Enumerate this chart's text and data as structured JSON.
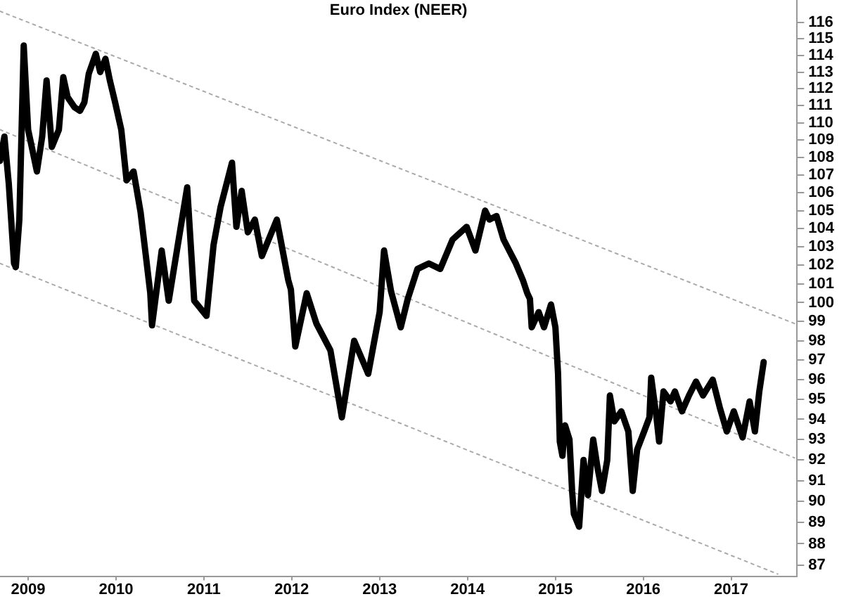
{
  "chart_data": {
    "type": "line",
    "title": "Euro Index (NEER)",
    "log": "y",
    "grid": false,
    "legend": false,
    "marker": "none",
    "xlim": [
      2008.68,
      2017.75
    ],
    "ylim": [
      86.5,
      117.4
    ],
    "xticks": [
      {
        "value": 2009,
        "label": "2009"
      },
      {
        "value": 2010,
        "label": "2010"
      },
      {
        "value": 2011,
        "label": "2011"
      },
      {
        "value": 2012,
        "label": "2012"
      },
      {
        "value": 2013,
        "label": "2013"
      },
      {
        "value": 2014,
        "label": "2014"
      },
      {
        "value": 2015,
        "label": "2015"
      },
      {
        "value": 2016,
        "label": "2016"
      },
      {
        "value": 2017,
        "label": "2017"
      }
    ],
    "yticks": [
      87,
      88,
      89,
      90,
      91,
      92,
      93,
      94,
      95,
      96,
      97,
      98,
      99,
      100,
      101,
      102,
      103,
      104,
      105,
      106,
      107,
      108,
      109,
      110,
      111,
      112,
      113,
      114,
      115,
      116
    ],
    "series": [
      {
        "color": "#000000",
        "line_style": "solid",
        "x": [
          2008.68,
          2008.73,
          2008.78,
          2008.84,
          2008.86,
          2008.9,
          2008.95,
          2009.0,
          2009.05,
          2009.1,
          2009.16,
          2009.21,
          2009.27,
          2009.35,
          2009.4,
          2009.45,
          2009.53,
          2009.59,
          2009.64,
          2009.69,
          2009.77,
          2009.82,
          2009.88,
          2009.93,
          2009.99,
          2010.06,
          2010.12,
          2010.2,
          2010.28,
          2010.34,
          2010.39,
          2010.41,
          2010.52,
          2010.6,
          2010.81,
          2010.89,
          2011.03,
          2011.11,
          2011.19,
          2011.32,
          2011.37,
          2011.43,
          2011.5,
          2011.58,
          2011.66,
          2011.83,
          2011.96,
          2011.99,
          2012.04,
          2012.17,
          2012.28,
          2012.44,
          2012.57,
          2012.71,
          2012.87,
          2013.0,
          2013.05,
          2013.13,
          2013.24,
          2013.32,
          2013.43,
          2013.56,
          2013.69,
          2013.83,
          2013.99,
          2014.09,
          2014.2,
          2014.25,
          2014.33,
          2014.41,
          2014.55,
          2014.63,
          2014.68,
          2014.71,
          2014.73,
          2014.81,
          2014.87,
          2014.95,
          2015.0,
          2015.03,
          2015.05,
          2015.08,
          2015.11,
          2015.16,
          2015.19,
          2015.21,
          2015.27,
          2015.32,
          2015.37,
          2015.43,
          2015.48,
          2015.53,
          2015.59,
          2015.62,
          2015.67,
          2015.75,
          2015.83,
          2015.88,
          2015.93,
          2016.01,
          2016.07,
          2016.09,
          2016.15,
          2016.18,
          2016.23,
          2016.31,
          2016.36,
          2016.44,
          2016.52,
          2016.6,
          2016.68,
          2016.79,
          2016.87,
          2016.95,
          2017.03,
          2017.13,
          2017.21,
          2017.27,
          2017.32,
          2017.37
        ],
        "values": [
          107.8,
          109.2,
          106.5,
          102.1,
          101.9,
          104.5,
          114.6,
          109.6,
          108.4,
          107.2,
          109.2,
          112.5,
          108.6,
          109.6,
          112.7,
          111.5,
          110.9,
          110.7,
          111.2,
          112.9,
          114.1,
          113,
          113.8,
          112.5,
          111.2,
          109.6,
          106.7,
          107.2,
          104.9,
          102.5,
          100.5,
          98.8,
          102.8,
          100.1,
          106.3,
          100.1,
          99.3,
          103.1,
          105.2,
          107.7,
          104.1,
          106.1,
          103.8,
          104.5,
          102.5,
          104.5,
          101.2,
          100.7,
          97.7,
          100.5,
          98.9,
          97.5,
          94.1,
          98.0,
          96.3,
          99.5,
          102.8,
          100.6,
          98.7,
          100.2,
          101.8,
          102.1,
          101.8,
          103.4,
          104.1,
          102.8,
          105,
          104.5,
          104.7,
          103.4,
          102.1,
          101.2,
          100.5,
          100.2,
          98.7,
          99.5,
          98.7,
          99.9,
          98.7,
          96.3,
          92.9,
          92.2,
          93.7,
          93,
          90.5,
          89.4,
          88.8,
          92,
          90.3,
          93,
          91.6,
          90.5,
          92,
          95.2,
          93.9,
          94.4,
          93.4,
          90.5,
          92.5,
          93.4,
          94.1,
          96.1,
          94.1,
          92.9,
          95.4,
          94.9,
          95.4,
          94.4,
          95.2,
          95.9,
          95.2,
          96,
          94.6,
          93.4,
          94.4,
          93.1,
          94.9,
          93.4,
          95.4,
          96.9
        ]
      },
      {
        "type": "line",
        "color": "#aaaaaa",
        "line_style": "dotted",
        "x": [
          2008.68,
          2017.72
        ],
        "values": [
          116.7,
          98.9
        ]
      },
      {
        "type": "line",
        "color": "#aaaaaa",
        "line_style": "dotted",
        "x": [
          2008.68,
          2017.72
        ],
        "values": [
          109.6,
          92.1
        ]
      },
      {
        "type": "line",
        "color": "#aaaaaa",
        "line_style": "dotted",
        "x": [
          2008.68,
          2017.53
        ],
        "values": [
          102.1,
          86.6
        ]
      }
    ]
  }
}
